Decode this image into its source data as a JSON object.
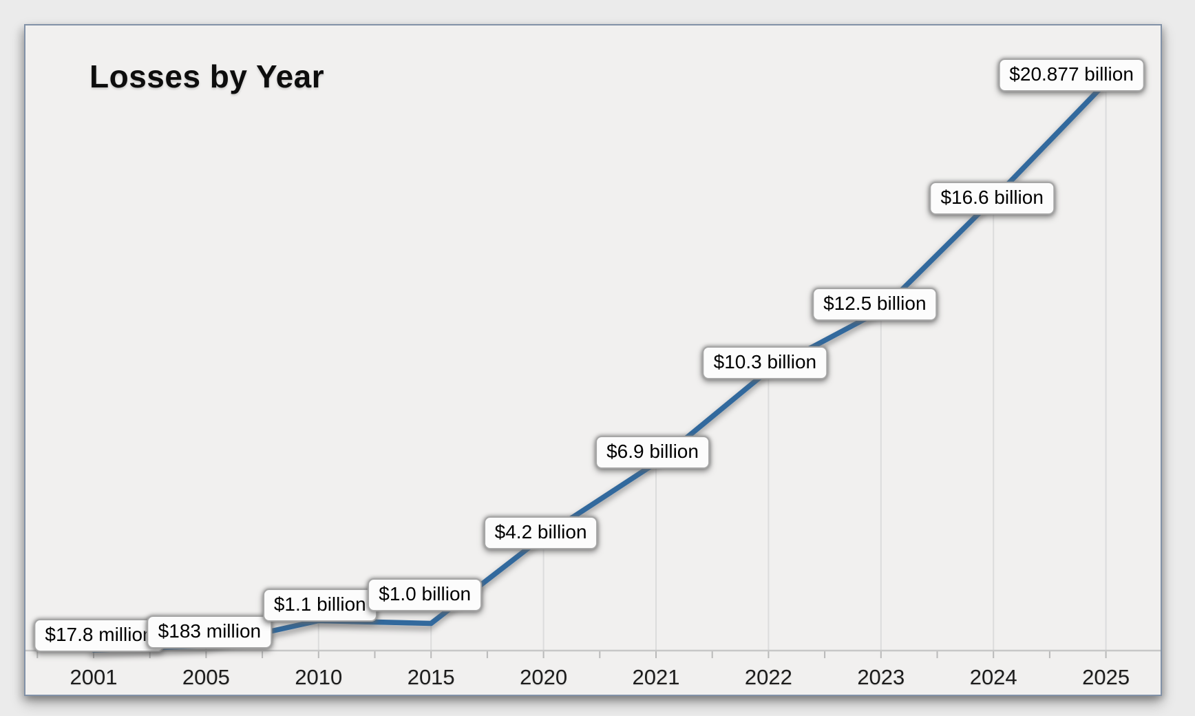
{
  "title": "Losses by Year",
  "colors": {
    "background": "#ebebeb",
    "plot_background": "#f1f0ef",
    "frame_border": "#8191a7",
    "line": "#31699d",
    "axis": "#c7c7c7",
    "tick": "#b9b9b9",
    "drop_line": "#dcdcdc",
    "label_box_bg": "#fcfcfc",
    "label_box_border": "#a6a6a6"
  },
  "chart_data": {
    "type": "line",
    "title": "Losses by Year",
    "xlabel": "",
    "ylabel": "",
    "categories": [
      "2001",
      "2005",
      "2010",
      "2015",
      "2020",
      "2021",
      "2022",
      "2023",
      "2024",
      "2025"
    ],
    "values_usd_billions": [
      0.0178,
      0.183,
      1.1,
      1.0,
      4.2,
      6.9,
      10.3,
      12.5,
      16.6,
      20.877
    ],
    "data_labels": [
      "$17.8 million",
      "$183 million",
      "$1.1 billion",
      "$1.0 billion",
      "$4.2 billion",
      "$6.9 billion",
      "$10.3 billion",
      "$12.5 billion",
      "$16.6 billion",
      "$20.877 billion"
    ],
    "ylim": [
      0,
      21
    ],
    "y_axis_visible": false,
    "grid": "vertical drop lines from each point to x-axis",
    "legend": "none",
    "line_color": "#31699d"
  }
}
